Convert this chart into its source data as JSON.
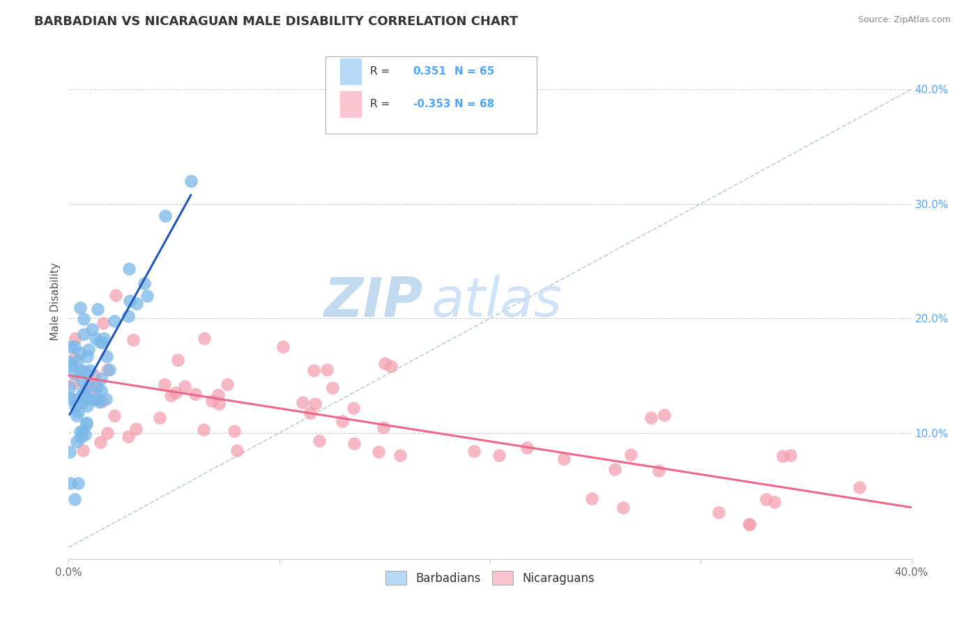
{
  "title": "BARBADIAN VS NICARAGUAN MALE DISABILITY CORRELATION CHART",
  "source": "Source: ZipAtlas.com",
  "ylabel": "Male Disability",
  "x_range": [
    0.0,
    0.4
  ],
  "y_range": [
    -0.01,
    0.44
  ],
  "barbadian_R": 0.351,
  "barbadian_N": 65,
  "nicaraguan_R": -0.353,
  "nicaraguan_N": 68,
  "barbadian_color": "#7ab8e8",
  "nicaraguan_color": "#f4a0b0",
  "barbadian_legend_color": "#b8d9f5",
  "nicaraguan_legend_color": "#f9c4cf",
  "trend_blue": "#2255bb",
  "trend_pink": "#ee6688",
  "diagonal_color": "#bbccdd",
  "background_color": "#ffffff",
  "grid_color": "#cccccc",
  "watermark_zip": "ZIP",
  "watermark_atlas": "atlas",
  "watermark_color": "#d5eaf8",
  "legend_label_barbadians": "Barbadians",
  "legend_label_nicaraguans": "Nicaraguans",
  "title_color": "#333333",
  "source_color": "#888888",
  "ytick_color": "#4da6ff",
  "xtick_color": "#666666"
}
